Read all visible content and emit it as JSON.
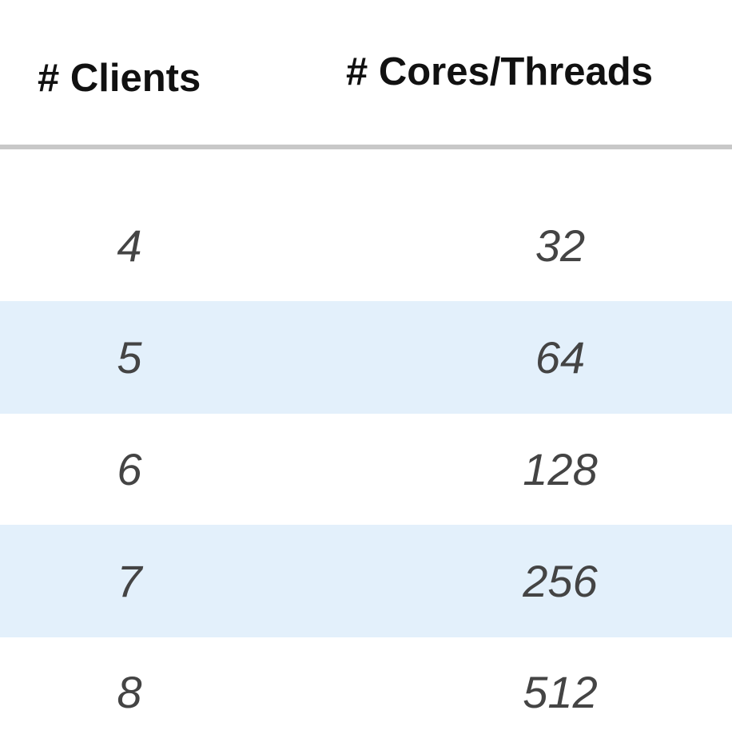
{
  "table": {
    "header": [
      "# Clients",
      "# Cores/Threads"
    ],
    "rows": [
      [
        4,
        32
      ],
      [
        5,
        64
      ],
      [
        6,
        128
      ],
      [
        7,
        256
      ],
      [
        8,
        512
      ]
    ]
  }
}
